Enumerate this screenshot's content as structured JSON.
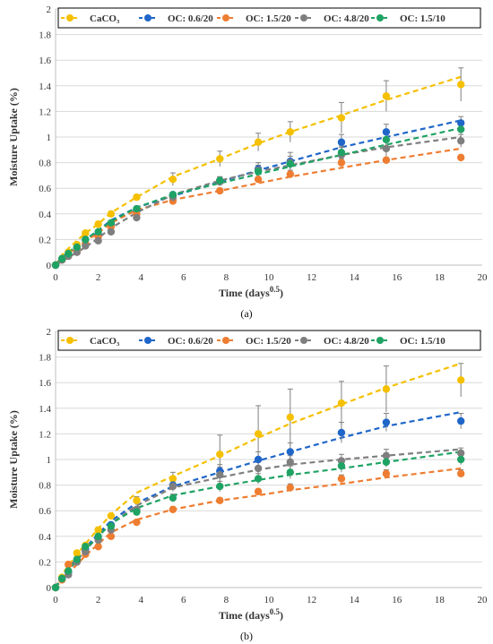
{
  "chart_data": [
    {
      "type": "scatter",
      "caption": "(a)",
      "xlabel": "Time (days",
      "xlabel_sup": "0.5",
      "xlabel_end": ")",
      "ylabel": "Moisture Uptake (%)",
      "xlim": [
        0,
        20
      ],
      "ylim": [
        0,
        2
      ],
      "xticks": [
        0,
        2,
        4,
        6,
        8,
        10,
        12,
        14,
        16,
        18,
        20
      ],
      "yticks": [
        0,
        0.2,
        0.4,
        0.6,
        0.8,
        1,
        1.2,
        1.4,
        1.6,
        1.8,
        2
      ],
      "grid": "horizontal",
      "legend": "top",
      "x": [
        0,
        0.3,
        0.6,
        1.0,
        1.4,
        2.0,
        2.6,
        3.8,
        5.5,
        7.7,
        9.5,
        11.0,
        13.4,
        15.5,
        19.0
      ],
      "series": [
        {
          "name": "CaCO₃",
          "color": "#f5c000",
          "values": [
            0,
            0.05,
            0.1,
            0.16,
            0.25,
            0.32,
            0.4,
            0.53,
            0.67,
            0.83,
            0.96,
            1.04,
            1.15,
            1.32,
            1.41
          ],
          "errors": [
            0,
            0,
            0,
            0,
            0,
            0,
            0,
            0.02,
            0.05,
            0.06,
            0.07,
            0.08,
            0.12,
            0.12,
            0.13
          ],
          "fit": [
            0,
            0.08,
            0.13,
            0.19,
            0.25,
            0.32,
            0.41,
            0.53,
            0.69,
            0.83,
            0.95,
            1.04,
            1.17,
            1.29,
            1.47
          ]
        },
        {
          "name": "OC: 0.6/20",
          "color": "#1f66c9",
          "values": [
            0,
            0.05,
            0.08,
            0.13,
            0.2,
            0.24,
            0.32,
            0.43,
            0.55,
            0.66,
            0.75,
            0.81,
            0.96,
            1.04,
            1.11
          ],
          "errors": [
            0,
            0,
            0,
            0,
            0,
            0,
            0,
            0,
            0,
            0.03,
            0.05,
            0.07,
            0.06,
            0.06,
            0.05
          ],
          "fit": [
            0,
            0.06,
            0.1,
            0.15,
            0.2,
            0.27,
            0.35,
            0.45,
            0.54,
            0.65,
            0.74,
            0.81,
            0.92,
            1.0,
            1.13
          ]
        },
        {
          "name": "OC: 1.5/20",
          "color": "#ee7d31",
          "values": [
            0,
            0.04,
            0.07,
            0.12,
            0.17,
            0.22,
            0.3,
            0.4,
            0.5,
            0.58,
            0.67,
            0.71,
            0.8,
            0.82,
            0.84
          ],
          "errors": [
            0,
            0,
            0,
            0,
            0,
            0,
            0,
            0,
            0.02,
            0.02,
            0.02,
            0.03,
            0.03,
            0.02,
            0.02
          ],
          "fit": [
            0,
            0.05,
            0.09,
            0.14,
            0.19,
            0.25,
            0.33,
            0.43,
            0.51,
            0.58,
            0.64,
            0.69,
            0.76,
            0.82,
            0.91
          ]
        },
        {
          "name": "OC: 4.8/20",
          "color": "#7f7f7f",
          "values": [
            0,
            0.04,
            0.07,
            0.1,
            0.15,
            0.19,
            0.26,
            0.37,
            0.53,
            0.65,
            0.74,
            0.8,
            0.86,
            0.91,
            0.97
          ],
          "errors": [
            0,
            0,
            0,
            0,
            0,
            0,
            0,
            0,
            0.02,
            0.03,
            0.04,
            0.05,
            0.06,
            0.06,
            0.05
          ],
          "fit": [
            0,
            0.03,
            0.06,
            0.1,
            0.14,
            0.21,
            0.29,
            0.41,
            0.55,
            0.66,
            0.73,
            0.78,
            0.86,
            0.92,
            1.0
          ]
        },
        {
          "name": "OC: 1.5/10",
          "color": "#1fa364",
          "values": [
            0,
            0.05,
            0.09,
            0.14,
            0.2,
            0.26,
            0.33,
            0.44,
            0.55,
            0.66,
            0.73,
            0.79,
            0.88,
            0.98,
            1.06
          ],
          "errors": [
            0,
            0,
            0,
            0,
            0,
            0,
            0,
            0,
            0.02,
            0.03,
            0.04,
            0.04,
            0.05,
            0.05,
            0.04
          ],
          "fit": [
            0,
            0.06,
            0.1,
            0.15,
            0.2,
            0.27,
            0.34,
            0.45,
            0.55,
            0.64,
            0.71,
            0.77,
            0.86,
            0.94,
            1.07
          ]
        }
      ]
    },
    {
      "type": "scatter",
      "caption": "(b)",
      "xlabel": "Time (days",
      "xlabel_sup": "0.5",
      "xlabel_end": ")",
      "ylabel": "Moisture Uptake (%)",
      "xlim": [
        0,
        20
      ],
      "ylim": [
        0,
        2
      ],
      "xticks": [
        0,
        2,
        4,
        6,
        8,
        10,
        12,
        14,
        16,
        18,
        20
      ],
      "yticks": [
        0,
        0.2,
        0.4,
        0.6,
        0.8,
        1,
        1.2,
        1.4,
        1.6,
        1.8,
        2
      ],
      "grid": "horizontal",
      "legend": "top",
      "x": [
        0,
        0.3,
        0.6,
        1.0,
        1.4,
        2.0,
        2.6,
        3.8,
        5.5,
        7.7,
        9.5,
        11.0,
        13.4,
        15.5,
        19.0
      ],
      "series": [
        {
          "name": "CaCO₃",
          "color": "#f5c000",
          "values": [
            0,
            0.08,
            0.18,
            0.27,
            0.33,
            0.45,
            0.56,
            0.68,
            0.85,
            1.04,
            1.2,
            1.33,
            1.44,
            1.55,
            1.62
          ],
          "errors": [
            0,
            0,
            0,
            0,
            0,
            0,
            0,
            0.03,
            0.05,
            0.15,
            0.22,
            0.22,
            0.17,
            0.18,
            0.13
          ],
          "fit": [
            0,
            0.1,
            0.17,
            0.26,
            0.34,
            0.46,
            0.57,
            0.74,
            0.87,
            1.03,
            1.17,
            1.28,
            1.43,
            1.56,
            1.75
          ]
        },
        {
          "name": "OC: 0.6/20",
          "color": "#1f66c9",
          "values": [
            0,
            0.07,
            0.12,
            0.21,
            0.3,
            0.38,
            0.49,
            0.6,
            0.8,
            0.91,
            1.0,
            1.06,
            1.21,
            1.29,
            1.3
          ],
          "errors": [
            0,
            0,
            0,
            0,
            0,
            0,
            0,
            0,
            0.03,
            0.05,
            0.06,
            0.07,
            0.08,
            0.07,
            0.06
          ],
          "fit": [
            0,
            0.09,
            0.15,
            0.23,
            0.31,
            0.42,
            0.52,
            0.66,
            0.79,
            0.9,
            0.99,
            1.06,
            1.17,
            1.26,
            1.37
          ]
        },
        {
          "name": "OC: 1.5/20",
          "color": "#ee7d31",
          "values": [
            0,
            0.06,
            0.18,
            0.2,
            0.26,
            0.32,
            0.4,
            0.51,
            0.61,
            0.68,
            0.75,
            0.78,
            0.85,
            0.89,
            0.89
          ],
          "errors": [
            0,
            0,
            0,
            0,
            0,
            0,
            0,
            0,
            0.02,
            0.02,
            0.02,
            0.03,
            0.03,
            0.03,
            0.03
          ],
          "fit": [
            0,
            0.06,
            0.11,
            0.18,
            0.25,
            0.34,
            0.43,
            0.53,
            0.61,
            0.68,
            0.72,
            0.76,
            0.81,
            0.86,
            0.93
          ]
        },
        {
          "name": "OC: 4.8/20",
          "color": "#7f7f7f",
          "values": [
            0,
            0.07,
            0.1,
            0.2,
            0.28,
            0.37,
            0.45,
            0.61,
            0.79,
            0.88,
            0.93,
            0.98,
            0.99,
            1.03,
            1.05
          ],
          "errors": [
            0,
            0,
            0,
            0,
            0,
            0,
            0,
            0,
            0.04,
            0.06,
            0.05,
            0.05,
            0.05,
            0.05,
            0.04
          ],
          "fit": [
            0,
            0.08,
            0.13,
            0.21,
            0.29,
            0.4,
            0.5,
            0.64,
            0.78,
            0.86,
            0.92,
            0.96,
            1.0,
            1.03,
            1.08
          ]
        },
        {
          "name": "OC: 1.5/10",
          "color": "#1fa364",
          "values": [
            0,
            0.07,
            0.13,
            0.22,
            0.32,
            0.4,
            0.48,
            0.59,
            0.7,
            0.79,
            0.85,
            0.9,
            0.95,
            0.98,
            1.0
          ],
          "errors": [
            0,
            0,
            0,
            0,
            0,
            0,
            0,
            0,
            0.03,
            0.04,
            0.04,
            0.05,
            0.05,
            0.04,
            0.04
          ],
          "fit": [
            0,
            0.08,
            0.14,
            0.22,
            0.3,
            0.4,
            0.5,
            0.62,
            0.72,
            0.79,
            0.84,
            0.88,
            0.93,
            0.98,
            1.06
          ]
        }
      ]
    }
  ]
}
